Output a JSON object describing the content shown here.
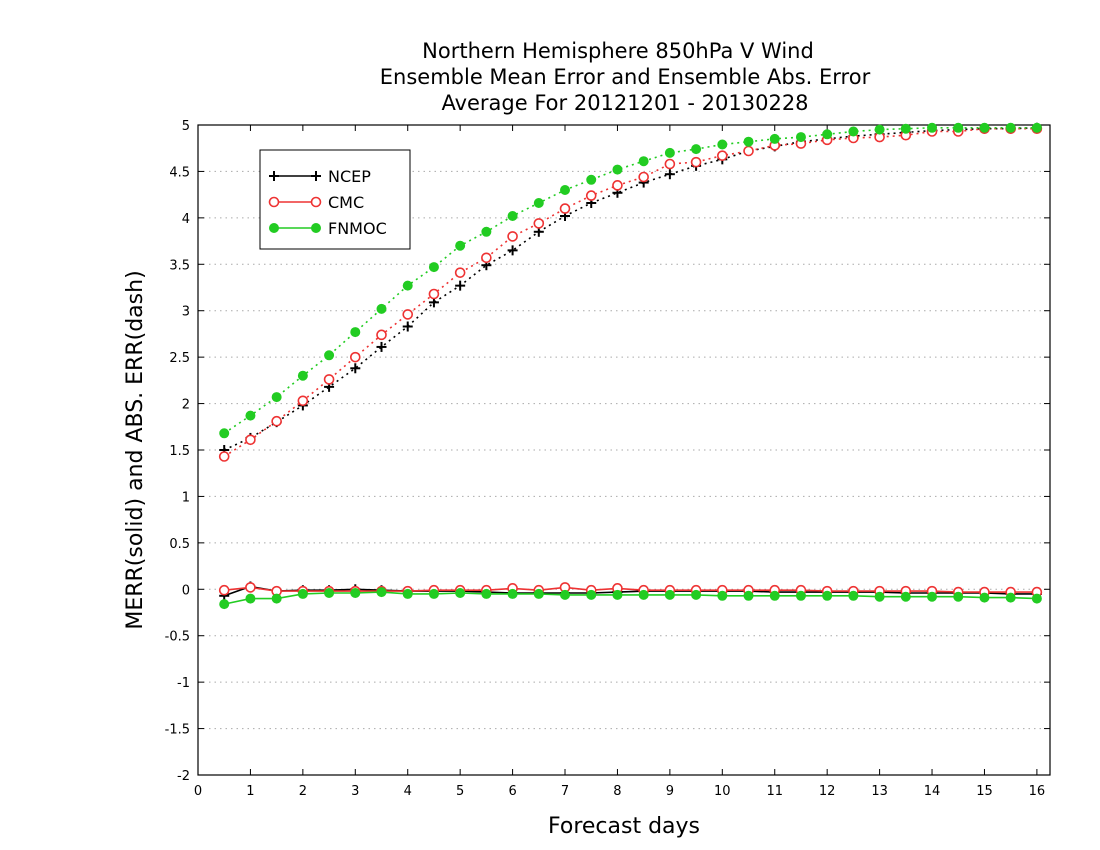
{
  "chart_data": {
    "type": "line",
    "title": [
      "Northern Hemisphere 850hPa V Wind",
      "Ensemble Mean Error and Ensemble Abs. Error",
      "Average For 20121201 - 20130228"
    ],
    "xlabel": "Forecast days",
    "ylabel": "MERR(solid) and ABS. ERR(dash)",
    "xlim": [
      0,
      16.25
    ],
    "ylim": [
      -2,
      5
    ],
    "xticks": [
      0,
      1,
      2,
      3,
      4,
      5,
      6,
      7,
      8,
      9,
      10,
      11,
      12,
      13,
      14,
      15,
      16
    ],
    "yticks": [
      -2,
      -1.5,
      -1,
      -0.5,
      0,
      0.5,
      1,
      1.5,
      2,
      2.5,
      3,
      3.5,
      4,
      4.5,
      5
    ],
    "ytick_labels": [
      "-2",
      "-1.5",
      "-1",
      "-0.5",
      "0",
      "0.5",
      "1",
      "1.5",
      "2",
      "2.5",
      "3",
      "3.5",
      "4",
      "4.5",
      "5"
    ],
    "grid": "horizontal dotted",
    "legend_position": "top-left",
    "x": [
      0.5,
      1,
      1.5,
      2,
      2.5,
      3,
      3.5,
      4,
      4.5,
      5,
      5.5,
      6,
      6.5,
      7,
      7.5,
      8,
      8.5,
      9,
      9.5,
      10,
      10.5,
      11,
      11.5,
      12,
      12.5,
      13,
      13.5,
      14,
      14.5,
      15,
      15.5,
      16
    ],
    "series": [
      {
        "name": "NCEP",
        "color": "#000000",
        "marker": "plus",
        "abs_error": [
          1.5,
          1.63,
          1.8,
          1.98,
          2.18,
          2.38,
          2.61,
          2.83,
          3.09,
          3.27,
          3.49,
          3.65,
          3.85,
          4.02,
          4.16,
          4.27,
          4.38,
          4.47,
          4.56,
          4.63,
          4.72,
          4.77,
          4.82,
          4.85,
          4.88,
          4.9,
          4.92,
          4.94,
          4.95,
          4.96,
          4.96,
          4.97
        ],
        "mean_error": [
          -0.07,
          0.03,
          -0.02,
          -0.01,
          -0.01,
          0.0,
          -0.01,
          -0.02,
          -0.02,
          -0.02,
          -0.03,
          -0.04,
          -0.04,
          -0.04,
          -0.04,
          -0.03,
          -0.02,
          -0.02,
          -0.02,
          -0.02,
          -0.02,
          -0.03,
          -0.03,
          -0.03,
          -0.03,
          -0.03,
          -0.04,
          -0.04,
          -0.04,
          -0.04,
          -0.05,
          -0.05
        ]
      },
      {
        "name": "CMC",
        "color": "#ee3333",
        "marker": "open-circle",
        "abs_error": [
          1.43,
          1.61,
          1.81,
          2.03,
          2.26,
          2.5,
          2.74,
          2.96,
          3.18,
          3.41,
          3.57,
          3.8,
          3.94,
          4.1,
          4.24,
          4.35,
          4.44,
          4.58,
          4.6,
          4.67,
          4.72,
          4.78,
          4.8,
          4.84,
          4.86,
          4.87,
          4.89,
          4.93,
          4.93,
          4.96,
          4.96,
          4.96
        ],
        "mean_error": [
          -0.01,
          0.02,
          -0.02,
          -0.02,
          -0.02,
          -0.02,
          -0.02,
          -0.02,
          -0.01,
          -0.01,
          -0.01,
          0.01,
          -0.01,
          0.02,
          -0.01,
          0.01,
          -0.01,
          -0.01,
          -0.01,
          -0.01,
          -0.01,
          -0.01,
          -0.01,
          -0.02,
          -0.02,
          -0.02,
          -0.02,
          -0.02,
          -0.03,
          -0.03,
          -0.03,
          -0.03
        ]
      },
      {
        "name": "FNMOC",
        "color": "#22cc22",
        "marker": "filled-circle",
        "abs_error": [
          1.68,
          1.87,
          2.07,
          2.3,
          2.52,
          2.77,
          3.02,
          3.27,
          3.47,
          3.7,
          3.85,
          4.02,
          4.16,
          4.3,
          4.41,
          4.52,
          4.61,
          4.7,
          4.74,
          4.79,
          4.82,
          4.85,
          4.87,
          4.9,
          4.93,
          4.95,
          4.96,
          4.97,
          4.97,
          4.97,
          4.97,
          4.97
        ],
        "mean_error": [
          -0.16,
          -0.1,
          -0.1,
          -0.05,
          -0.04,
          -0.04,
          -0.03,
          -0.05,
          -0.05,
          -0.04,
          -0.05,
          -0.05,
          -0.05,
          -0.06,
          -0.06,
          -0.06,
          -0.06,
          -0.06,
          -0.06,
          -0.07,
          -0.07,
          -0.07,
          -0.07,
          -0.07,
          -0.07,
          -0.08,
          -0.08,
          -0.08,
          -0.08,
          -0.09,
          -0.09,
          -0.1
        ]
      }
    ]
  }
}
